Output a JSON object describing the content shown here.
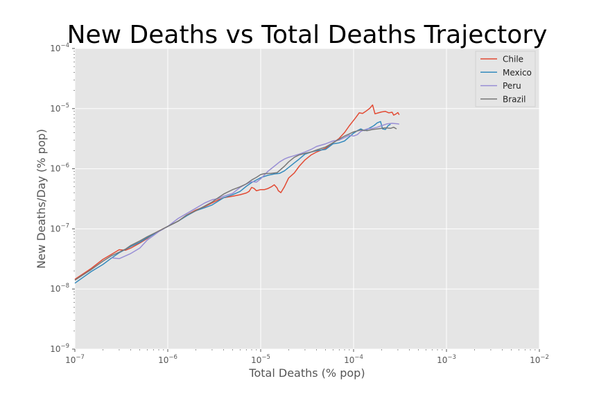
{
  "chart_data": {
    "type": "line",
    "title": "New Deaths vs Total Deaths Trajectory",
    "xlabel": "Total Deaths (% pop)",
    "ylabel": "New Deaths/Day (% pop)",
    "xscale": "log",
    "yscale": "log",
    "xlim": [
      1e-07,
      0.01
    ],
    "ylim": [
      1e-09,
      0.0001
    ],
    "x_ticks": [
      {
        "base": "10",
        "exp": "−7",
        "value": 1e-07
      },
      {
        "base": "10",
        "exp": "−6",
        "value": 1e-06
      },
      {
        "base": "10",
        "exp": "−5",
        "value": 1e-05
      },
      {
        "base": "10",
        "exp": "−4",
        "value": 0.0001
      },
      {
        "base": "10",
        "exp": "−3",
        "value": 0.001
      },
      {
        "base": "10",
        "exp": "−2",
        "value": 0.01
      }
    ],
    "y_ticks": [
      {
        "base": "10",
        "exp": "−9",
        "value": 1e-09
      },
      {
        "base": "10",
        "exp": "−8",
        "value": 1e-08
      },
      {
        "base": "10",
        "exp": "−7",
        "value": 1e-07
      },
      {
        "base": "10",
        "exp": "−6",
        "value": 1e-06
      },
      {
        "base": "10",
        "exp": "−5",
        "value": 1e-05
      },
      {
        "base": "10",
        "exp": "−4",
        "value": 0.0001
      }
    ],
    "grid": true,
    "legend_position": "top-right",
    "series": [
      {
        "name": "Chile",
        "color": "#E24A33",
        "points": [
          [
            1e-07,
            1.45e-08
          ],
          [
            1.5e-07,
            2.2e-08
          ],
          [
            2e-07,
            3.1e-08
          ],
          [
            2.5e-07,
            3.8e-08
          ],
          [
            3e-07,
            4.5e-08
          ],
          [
            3.5e-07,
            4.4e-08
          ],
          [
            4e-07,
            4.8e-08
          ],
          [
            5e-07,
            5.8e-08
          ],
          [
            6e-07,
            6.9e-08
          ],
          [
            7e-07,
            8.2e-08
          ],
          [
            8e-07,
            9.2e-08
          ],
          [
            1e-06,
            1.1e-07
          ],
          [
            1.3e-06,
            1.35e-07
          ],
          [
            1.6e-06,
            1.7e-07
          ],
          [
            2e-06,
            2.05e-07
          ],
          [
            2.5e-06,
            2.35e-07
          ],
          [
            3e-06,
            2.7e-07
          ],
          [
            3.5e-06,
            3.05e-07
          ],
          [
            4e-06,
            3.3e-07
          ],
          [
            4.5e-06,
            3.4e-07
          ],
          [
            5e-06,
            3.5e-07
          ],
          [
            5.5e-06,
            3.6e-07
          ],
          [
            6e-06,
            3.7e-07
          ],
          [
            7e-06,
            3.95e-07
          ],
          [
            7.5e-06,
            4.2e-07
          ],
          [
            8e-06,
            4.9e-07
          ],
          [
            8.5e-06,
            4.7e-07
          ],
          [
            9e-06,
            4.3e-07
          ],
          [
            1e-05,
            4.5e-07
          ],
          [
            1.1e-05,
            4.5e-07
          ],
          [
            1.2e-05,
            4.7e-07
          ],
          [
            1.3e-05,
            5e-07
          ],
          [
            1.4e-05,
            5.4e-07
          ],
          [
            1.5e-05,
            4.8e-07
          ],
          [
            1.55e-05,
            4.3e-07
          ],
          [
            1.65e-05,
            4e-07
          ],
          [
            1.8e-05,
            5e-07
          ],
          [
            2e-05,
            7e-07
          ],
          [
            2.3e-05,
            8.5e-07
          ],
          [
            2.6e-05,
            1.1e-06
          ],
          [
            3e-05,
            1.4e-06
          ],
          [
            3.5e-05,
            1.7e-06
          ],
          [
            4e-05,
            1.9e-06
          ],
          [
            5e-05,
            2.2e-06
          ],
          [
            6e-05,
            2.7e-06
          ],
          [
            7e-05,
            3.2e-06
          ],
          [
            8e-05,
            4e-06
          ],
          [
            9e-05,
            5.2e-06
          ],
          [
            0.000105,
            7e-06
          ],
          [
            0.000115,
            8.5e-06
          ],
          [
            0.000125,
            8.3e-06
          ],
          [
            0.000135,
            9e-06
          ],
          [
            0.00015,
            1.02e-05
          ],
          [
            0.00016,
            1.15e-05
          ],
          [
            0.00017,
            8.2e-06
          ],
          [
            0.000185,
            8.5e-06
          ],
          [
            0.0002,
            8.8e-06
          ],
          [
            0.00022,
            9e-06
          ],
          [
            0.00024,
            8.5e-06
          ],
          [
            0.00026,
            8.7e-06
          ],
          [
            0.00027,
            7.8e-06
          ],
          [
            0.000285,
            8.1e-06
          ],
          [
            0.0003,
            8.6e-06
          ],
          [
            0.00031,
            7.9e-06
          ]
        ]
      },
      {
        "name": "Mexico",
        "color": "#348ABD",
        "points": [
          [
            1e-07,
            1.25e-08
          ],
          [
            1.5e-07,
            1.95e-08
          ],
          [
            2e-07,
            2.55e-08
          ],
          [
            2.5e-07,
            3.3e-08
          ],
          [
            3e-07,
            4e-08
          ],
          [
            4e-07,
            5.1e-08
          ],
          [
            5e-07,
            6e-08
          ],
          [
            6e-07,
            7.1e-08
          ],
          [
            8e-07,
            9.1e-08
          ],
          [
            1e-06,
            1.1e-07
          ],
          [
            1.3e-06,
            1.35e-07
          ],
          [
            1.6e-06,
            1.65e-07
          ],
          [
            2e-06,
            2e-07
          ],
          [
            2.5e-06,
            2.25e-07
          ],
          [
            3e-06,
            2.5e-07
          ],
          [
            3.5e-06,
            2.9e-07
          ],
          [
            4e-06,
            3.3e-07
          ],
          [
            5e-06,
            3.7e-07
          ],
          [
            6e-06,
            4.2e-07
          ],
          [
            7e-06,
            5.1e-07
          ],
          [
            8e-06,
            5.9e-07
          ],
          [
            1e-05,
            7.1e-07
          ],
          [
            1.2e-05,
            7.8e-07
          ],
          [
            1.4e-05,
            8.2e-07
          ],
          [
            1.6e-05,
            8.4e-07
          ],
          [
            1.8e-05,
            9.2e-07
          ],
          [
            2e-05,
            1.05e-06
          ],
          [
            2.3e-05,
            1.25e-06
          ],
          [
            2.6e-05,
            1.45e-06
          ],
          [
            3e-05,
            1.75e-06
          ],
          [
            3.5e-05,
            1.9e-06
          ],
          [
            4e-05,
            2e-06
          ],
          [
            5e-05,
            2.1e-06
          ],
          [
            6e-05,
            2.6e-06
          ],
          [
            7e-05,
            2.7e-06
          ],
          [
            8e-05,
            2.9e-06
          ],
          [
            9e-05,
            3.4e-06
          ],
          [
            0.0001,
            3.9e-06
          ],
          [
            0.00011,
            4.3e-06
          ],
          [
            0.00012,
            4.6e-06
          ],
          [
            0.00013,
            4.3e-06
          ],
          [
            0.00014,
            4.5e-06
          ],
          [
            0.00015,
            4.8e-06
          ],
          [
            0.000165,
            5.2e-06
          ],
          [
            0.00018,
            5.8e-06
          ],
          [
            0.000195,
            6.1e-06
          ],
          [
            0.000205,
            4.6e-06
          ],
          [
            0.00022,
            4.5e-06
          ],
          [
            0.000235,
            5.2e-06
          ],
          [
            0.00025,
            5.5e-06
          ]
        ]
      },
      {
        "name": "Peru",
        "color": "#988ED5",
        "points": [
          [
            2.5e-07,
            3.3e-08
          ],
          [
            3e-07,
            3.2e-08
          ],
          [
            4e-07,
            3.9e-08
          ],
          [
            5e-07,
            4.8e-08
          ],
          [
            6e-07,
            6.5e-08
          ],
          [
            8e-07,
            9e-08
          ],
          [
            1e-06,
            1.1e-07
          ],
          [
            1.3e-06,
            1.5e-07
          ],
          [
            1.6e-06,
            1.8e-07
          ],
          [
            2e-06,
            2.2e-07
          ],
          [
            2.5e-06,
            2.7e-07
          ],
          [
            3e-06,
            3.05e-07
          ],
          [
            3.5e-06,
            3.2e-07
          ],
          [
            4e-06,
            3.5e-07
          ],
          [
            5e-06,
            3.9e-07
          ],
          [
            6e-06,
            4.9e-07
          ],
          [
            7e-06,
            5.6e-07
          ],
          [
            8e-06,
            6.1e-07
          ],
          [
            9e-06,
            6e-07
          ],
          [
            1e-05,
            6.8e-07
          ],
          [
            1.2e-05,
            9.1e-07
          ],
          [
            1.4e-05,
            1.1e-06
          ],
          [
            1.6e-05,
            1.3e-06
          ],
          [
            1.8e-05,
            1.45e-06
          ],
          [
            2e-05,
            1.55e-06
          ],
          [
            2.3e-05,
            1.65e-06
          ],
          [
            2.6e-05,
            1.75e-06
          ],
          [
            3e-05,
            1.9e-06
          ],
          [
            3.5e-05,
            2.1e-06
          ],
          [
            4e-05,
            2.35e-06
          ],
          [
            5e-05,
            2.6e-06
          ],
          [
            6e-05,
            2.9e-06
          ],
          [
            7e-05,
            3e-06
          ],
          [
            8e-05,
            3.3e-06
          ],
          [
            9e-05,
            3.6e-06
          ],
          [
            0.0001,
            3.5e-06
          ],
          [
            0.00011,
            3.7e-06
          ],
          [
            0.00012,
            4.2e-06
          ],
          [
            0.00014,
            4.6e-06
          ],
          [
            0.00016,
            4.7e-06
          ],
          [
            0.00018,
            4.9e-06
          ],
          [
            0.0002,
            5.2e-06
          ],
          [
            0.00023,
            5.6e-06
          ],
          [
            0.00026,
            5.7e-06
          ],
          [
            0.0003,
            5.6e-06
          ],
          [
            0.00031,
            5.5e-06
          ]
        ]
      },
      {
        "name": "Brazil",
        "color": "#777777",
        "points": [
          [
            1e-07,
            1.4e-08
          ],
          [
            1.5e-07,
            2.1e-08
          ],
          [
            2e-07,
            2.9e-08
          ],
          [
            2.5e-07,
            3.6e-08
          ],
          [
            3e-07,
            4.1e-08
          ],
          [
            3.5e-07,
            4.6e-08
          ],
          [
            4e-07,
            5.3e-08
          ],
          [
            5e-07,
            6.3e-08
          ],
          [
            6e-07,
            7.4e-08
          ],
          [
            8e-07,
            9.2e-08
          ],
          [
            1e-06,
            1.1e-07
          ],
          [
            1.3e-06,
            1.35e-07
          ],
          [
            1.6e-06,
            1.7e-07
          ],
          [
            2e-06,
            2e-07
          ],
          [
            2.5e-06,
            2.4e-07
          ],
          [
            3e-06,
            2.8e-07
          ],
          [
            3.5e-06,
            3.3e-07
          ],
          [
            4e-06,
            3.8e-07
          ],
          [
            5e-06,
            4.5e-07
          ],
          [
            6e-06,
            5e-07
          ],
          [
            7e-06,
            5.6e-07
          ],
          [
            8e-06,
            6.5e-07
          ],
          [
            9e-06,
            7.2e-07
          ],
          [
            1e-05,
            8e-07
          ],
          [
            1.1e-05,
            8.3e-07
          ],
          [
            1.3e-05,
            8.4e-07
          ],
          [
            1.5e-05,
            8.6e-07
          ],
          [
            1.8e-05,
            1.1e-06
          ],
          [
            2e-05,
            1.3e-06
          ],
          [
            2.3e-05,
            1.55e-06
          ],
          [
            2.6e-05,
            1.7e-06
          ],
          [
            3e-05,
            1.8e-06
          ],
          [
            3.5e-05,
            1.9e-06
          ],
          [
            4e-05,
            2.05e-06
          ],
          [
            5e-05,
            2.3e-06
          ],
          [
            6e-05,
            2.7e-06
          ],
          [
            7e-05,
            3.1e-06
          ],
          [
            8e-05,
            3.5e-06
          ],
          [
            9e-05,
            3.8e-06
          ],
          [
            0.0001,
            4.1e-06
          ],
          [
            0.00012,
            4.4e-06
          ],
          [
            0.00014,
            4.3e-06
          ],
          [
            0.00016,
            4.5e-06
          ],
          [
            0.00018,
            4.6e-06
          ],
          [
            0.0002,
            4.7e-06
          ],
          [
            0.00022,
            4.8e-06
          ],
          [
            0.00025,
            4.7e-06
          ],
          [
            0.00027,
            4.9e-06
          ],
          [
            0.00029,
            4.6e-06
          ]
        ]
      }
    ]
  }
}
